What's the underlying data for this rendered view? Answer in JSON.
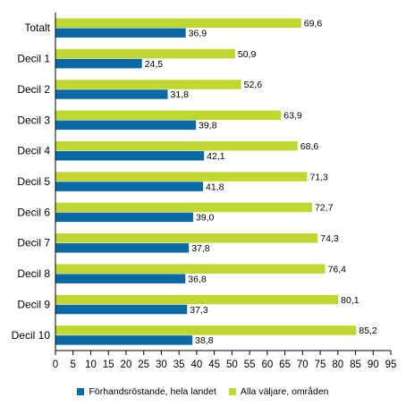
{
  "chart_data": {
    "type": "bar",
    "orientation": "horizontal",
    "categories": [
      "Totalt",
      "Decil 1",
      "Decil 2",
      "Decil 3",
      "Decil 4",
      "Decil 5",
      "Decil 6",
      "Decil 7",
      "Decil 8",
      "Decil 9",
      "Decil 10"
    ],
    "series": [
      {
        "name": "Förhandsröstande, hela landet",
        "color": "#0a6aa6",
        "values": [
          36.9,
          24.5,
          31.8,
          39.8,
          42.1,
          41.8,
          39.0,
          37.8,
          36.8,
          37.3,
          38.8
        ],
        "labels": [
          "36,9",
          "24,5",
          "31,8",
          "39,8",
          "42,1",
          "41,8",
          "39,0",
          "37,8",
          "36,8",
          "37,3",
          "38,8"
        ]
      },
      {
        "name": "Alla väljare, områden",
        "color": "#bfd730",
        "values": [
          69.6,
          50.9,
          52.6,
          63.9,
          68.6,
          71.3,
          72.7,
          74.3,
          76.4,
          80.1,
          85.2
        ],
        "labels": [
          "69,6",
          "50,9",
          "52,6",
          "63,9",
          "68,6",
          "71,3",
          "72,7",
          "74,3",
          "76,4",
          "80,1",
          "85,2"
        ]
      }
    ],
    "xlim": [
      0,
      95
    ],
    "xticks": [
      "0",
      "5",
      "10",
      "15",
      "20",
      "25",
      "30",
      "35",
      "40",
      "45",
      "50",
      "55",
      "60",
      "65",
      "70",
      "75",
      "80",
      "85",
      "90",
      "95"
    ],
    "title": "",
    "xlabel": "",
    "ylabel": "",
    "grid": false,
    "legend": "bottom-center"
  }
}
